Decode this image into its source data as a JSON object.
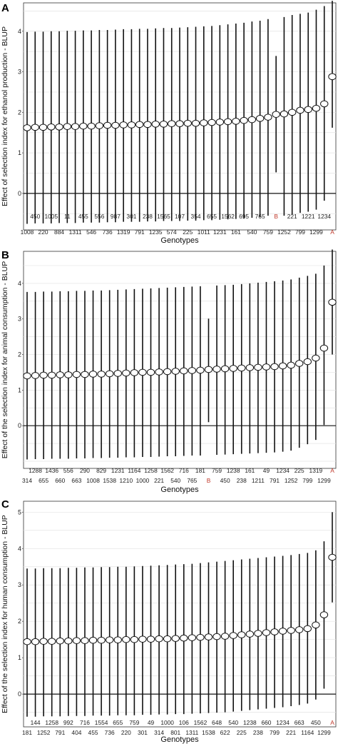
{
  "chart_data": [
    {
      "panel": "A",
      "type": "scatter",
      "ylabel": "Effect of selection index for ethanol production - BLUP",
      "xlabel": "Genotypes",
      "ylim": [
        -0.9,
        4.7
      ],
      "yticks": [
        0,
        1,
        2,
        3,
        4
      ],
      "grid": true,
      "highlight_color": "#c0392b",
      "highlight_categories": [
        "B",
        "A"
      ],
      "categories": [
        "1008",
        "450",
        "220",
        "1005",
        "884",
        "11",
        "1311",
        "455",
        "546",
        "556",
        "736",
        "987",
        "1319",
        "301",
        "791",
        "238",
        "1235",
        "1565",
        "574",
        "107",
        "225",
        "354",
        "1011",
        "655",
        "1231",
        "1562",
        "161",
        "695",
        "540",
        "765",
        "759",
        "B",
        "1252",
        "221",
        "799",
        "1221",
        "1299",
        "1234",
        "A"
      ],
      "values": [
        1.62,
        1.63,
        1.63,
        1.64,
        1.64,
        1.65,
        1.65,
        1.66,
        1.66,
        1.67,
        1.68,
        1.68,
        1.69,
        1.69,
        1.7,
        1.7,
        1.71,
        1.71,
        1.72,
        1.72,
        1.73,
        1.73,
        1.74,
        1.75,
        1.76,
        1.77,
        1.78,
        1.8,
        1.82,
        1.85,
        1.88,
        1.95,
        1.96,
        2.0,
        2.05,
        2.07,
        2.1,
        2.21,
        2.88
      ],
      "lower": [
        -0.75,
        -0.74,
        -0.74,
        -0.74,
        -0.73,
        -0.73,
        -0.73,
        -0.72,
        -0.72,
        -0.72,
        -0.71,
        -0.71,
        -0.7,
        -0.7,
        -0.7,
        -0.69,
        -0.69,
        -0.68,
        -0.68,
        -0.68,
        -0.67,
        -0.67,
        -0.66,
        -0.66,
        -0.65,
        -0.64,
        -0.63,
        -0.62,
        -0.6,
        -0.58,
        -0.55,
        0.52,
        -0.55,
        -0.52,
        -0.48,
        -0.45,
        -0.4,
        -0.18,
        1.62
      ],
      "upper": [
        3.98,
        3.99,
        3.99,
        4.0,
        4.0,
        4.01,
        4.01,
        4.02,
        4.02,
        4.03,
        4.03,
        4.04,
        4.05,
        4.05,
        4.06,
        4.06,
        4.07,
        4.08,
        4.08,
        4.09,
        4.1,
        4.11,
        4.12,
        4.13,
        4.15,
        4.17,
        4.19,
        4.21,
        4.24,
        4.26,
        4.3,
        3.39,
        4.35,
        4.4,
        4.43,
        4.46,
        4.53,
        4.62,
        4.75
      ]
    },
    {
      "panel": "B",
      "type": "scatter",
      "ylabel": "Effect of the selection index for animal consumption - BLUP",
      "xlabel": "Genotypes",
      "ylim": [
        -1.2,
        4.9
      ],
      "yticks": [
        0,
        1,
        2,
        3,
        4
      ],
      "grid": true,
      "highlight_color": "#c0392b",
      "highlight_categories": [
        "B",
        "A"
      ],
      "categories": [
        "314",
        "1288",
        "655",
        "1436",
        "660",
        "556",
        "663",
        "290",
        "1008",
        "829",
        "1538",
        "1231",
        "1210",
        "1164",
        "1000",
        "1258",
        "221",
        "1562",
        "540",
        "716",
        "765",
        "181",
        "B",
        "759",
        "450",
        "1238",
        "238",
        "161",
        "1211",
        "49",
        "791",
        "1234",
        "1252",
        "225",
        "799",
        "1319",
        "1299",
        "A"
      ],
      "values": [
        1.4,
        1.41,
        1.42,
        1.42,
        1.43,
        1.43,
        1.44,
        1.44,
        1.45,
        1.45,
        1.46,
        1.47,
        1.48,
        1.49,
        1.5,
        1.5,
        1.51,
        1.52,
        1.53,
        1.54,
        1.55,
        1.56,
        1.58,
        1.59,
        1.6,
        1.61,
        1.62,
        1.63,
        1.64,
        1.65,
        1.66,
        1.68,
        1.7,
        1.75,
        1.8,
        1.9,
        2.18,
        3.47
      ],
      "lower": [
        -0.95,
        -0.94,
        -0.94,
        -0.93,
        -0.93,
        -0.93,
        -0.92,
        -0.92,
        -0.91,
        -0.91,
        -0.9,
        -0.9,
        -0.89,
        -0.89,
        -0.88,
        -0.88,
        -0.87,
        -0.86,
        -0.86,
        -0.85,
        -0.84,
        -0.84,
        0.1,
        -0.82,
        -0.81,
        -0.8,
        -0.79,
        -0.78,
        -0.77,
        -0.76,
        -0.75,
        -0.73,
        -0.7,
        -0.62,
        -0.52,
        -0.4,
        0.02,
        2.0
      ],
      "upper": [
        3.76,
        3.76,
        3.77,
        3.77,
        3.78,
        3.78,
        3.79,
        3.79,
        3.8,
        3.8,
        3.81,
        3.82,
        3.83,
        3.84,
        3.85,
        3.86,
        3.87,
        3.88,
        3.89,
        3.9,
        3.91,
        3.92,
        3.01,
        3.94,
        3.95,
        3.96,
        3.98,
        4.0,
        4.02,
        4.04,
        4.06,
        4.08,
        4.11,
        4.16,
        4.21,
        4.27,
        4.5,
        4.95
      ]
    },
    {
      "panel": "C",
      "type": "scatter",
      "ylabel": "Effect of the selection index for human consumption - BLUP",
      "xlabel": "Genotypes",
      "ylim": [
        -0.9,
        5.3
      ],
      "yticks": [
        0,
        1,
        2,
        3,
        4,
        5
      ],
      "grid": true,
      "highlight_color": "#c0392b",
      "highlight_categories": [
        "A"
      ],
      "categories": [
        "181",
        "144",
        "1252",
        "1258",
        "791",
        "992",
        "404",
        "716",
        "455",
        "1554",
        "736",
        "655",
        "220",
        "759",
        "301",
        "49",
        "314",
        "1000",
        "801",
        "106",
        "1311",
        "1562",
        "1538",
        "648",
        "622",
        "540",
        "225",
        "1238",
        "238",
        "660",
        "799",
        "1234",
        "221",
        "663",
        "1164",
        "450",
        "1299",
        "A"
      ],
      "values": [
        1.44,
        1.44,
        1.45,
        1.45,
        1.46,
        1.46,
        1.47,
        1.47,
        1.48,
        1.48,
        1.49,
        1.49,
        1.5,
        1.5,
        1.51,
        1.51,
        1.52,
        1.52,
        1.53,
        1.54,
        1.55,
        1.56,
        1.57,
        1.58,
        1.59,
        1.61,
        1.63,
        1.65,
        1.67,
        1.69,
        1.71,
        1.73,
        1.75,
        1.77,
        1.8,
        1.9,
        2.18,
        3.76
      ],
      "lower": [
        -0.62,
        -0.62,
        -0.61,
        -0.61,
        -0.61,
        -0.6,
        -0.6,
        -0.6,
        -0.59,
        -0.59,
        -0.59,
        -0.58,
        -0.58,
        -0.58,
        -0.57,
        -0.57,
        -0.56,
        -0.56,
        -0.55,
        -0.55,
        -0.54,
        -0.53,
        -0.52,
        -0.51,
        -0.5,
        -0.48,
        -0.46,
        -0.44,
        -0.42,
        -0.4,
        -0.38,
        -0.36,
        -0.33,
        -0.3,
        -0.26,
        -0.15,
        0.15,
        2.52
      ],
      "upper": [
        3.45,
        3.45,
        3.46,
        3.46,
        3.46,
        3.47,
        3.47,
        3.48,
        3.48,
        3.49,
        3.49,
        3.5,
        3.5,
        3.51,
        3.52,
        3.53,
        3.54,
        3.55,
        3.56,
        3.57,
        3.58,
        3.6,
        3.62,
        3.64,
        3.66,
        3.68,
        3.7,
        3.72,
        3.74,
        3.76,
        3.78,
        3.8,
        3.82,
        3.85,
        3.88,
        3.95,
        4.2,
        5.0
      ]
    }
  ]
}
